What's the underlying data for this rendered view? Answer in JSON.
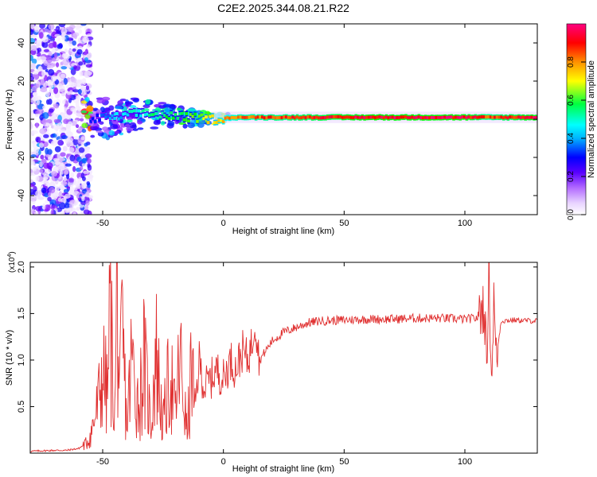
{
  "figure": {
    "title": "C2E2.2025.344.08.21.R22"
  },
  "chart_data": [
    {
      "type": "heatmap",
      "name": "spectrogram",
      "xlabel": "Height of straight line (km)",
      "ylabel": "Frequency (Hz)",
      "xlim": [
        -80,
        130
      ],
      "ylim": [
        -50,
        50
      ],
      "x_ticks": [
        -50,
        0,
        50,
        100
      ],
      "y_ticks": [
        -40,
        -20,
        0,
        20,
        40
      ],
      "colorbar": {
        "label": "Normalized spectral amplitude",
        "range": [
          0,
          1
        ],
        "ticks": [
          "0.0",
          "0.2",
          "0.4",
          "0.6",
          "0.8"
        ],
        "tick_values": [
          0.0,
          0.2,
          0.4,
          0.6,
          0.8
        ],
        "colormap": [
          "#ffffff",
          "#e8d4ff",
          "#7a00ff",
          "#0000ff",
          "#00ffff",
          "#00ff00",
          "#ffff00",
          "#ff8000",
          "#ff0000",
          "#ff0080"
        ]
      },
      "signal_trace": [
        {
          "x": -55,
          "f": 0,
          "amp": 0.35
        },
        {
          "x": -45,
          "f": 1,
          "amp": 0.45
        },
        {
          "x": -35,
          "f": 3,
          "amp": 0.5
        },
        {
          "x": -25,
          "f": 2,
          "amp": 0.55
        },
        {
          "x": -15,
          "f": 1,
          "amp": 0.6
        },
        {
          "x": -5,
          "f": 0,
          "amp": 0.75
        },
        {
          "x": 5,
          "f": 1,
          "amp": 0.85
        },
        {
          "x": 20,
          "f": 1,
          "amp": 0.9
        },
        {
          "x": 40,
          "f": 1,
          "amp": 0.95
        },
        {
          "x": 60,
          "f": 1,
          "amp": 1.0
        },
        {
          "x": 80,
          "f": 1,
          "amp": 1.0
        },
        {
          "x": 100,
          "f": 1,
          "amp": 1.0
        },
        {
          "x": 110,
          "f": 1,
          "amp": 0.9
        },
        {
          "x": 130,
          "f": 1,
          "amp": 1.0
        }
      ]
    },
    {
      "type": "line",
      "name": "snr",
      "xlabel": "Height of straight line (km)",
      "ylabel": "SNR (10 * v/v)",
      "scale_label": "(x10",
      "scale_exp": "4",
      "scale_close": ")",
      "xlim": [
        -80,
        130
      ],
      "ylim": [
        0,
        2.05
      ],
      "x_ticks": [
        -50,
        0,
        50,
        100
      ],
      "y_ticks": [
        "0.5",
        "1.0",
        "1.5",
        "2.0"
      ],
      "y_tick_values": [
        0.5,
        1.0,
        1.5,
        2.0
      ],
      "color": "#e03030",
      "series": [
        {
          "name": "SNR",
          "x": [
            -80,
            -70,
            -65,
            -60,
            -57,
            -55,
            -52,
            -50,
            -48,
            -47,
            -45,
            -44,
            -43,
            -42,
            -40,
            -38,
            -35,
            -33,
            -30,
            -28,
            -25,
            -22,
            -20,
            -18,
            -15,
            -13,
            -12,
            -10,
            -8,
            -5,
            -3,
            0,
            3,
            5,
            8,
            10,
            12,
            13,
            15,
            20,
            25,
            30,
            35,
            40,
            50,
            60,
            70,
            80,
            90,
            100,
            105,
            108,
            109,
            110,
            111,
            112,
            113,
            115,
            120,
            130
          ],
          "y": [
            0.02,
            0.03,
            0.03,
            0.05,
            0.1,
            0.2,
            0.5,
            0.9,
            0.6,
            1.5,
            0.4,
            1.8,
            0.5,
            1.3,
            0.3,
            1.0,
            0.5,
            1.0,
            0.3,
            1.1,
            0.3,
            0.9,
            0.4,
            1.0,
            0.2,
            1.0,
            0.4,
            1.0,
            0.7,
            0.8,
            0.9,
            0.8,
            1.0,
            0.9,
            1.1,
            1.0,
            1.2,
            1.45,
            1.0,
            1.2,
            1.3,
            1.35,
            1.4,
            1.42,
            1.43,
            1.44,
            1.44,
            1.45,
            1.45,
            1.44,
            1.45,
            1.6,
            0.95,
            2.05,
            0.75,
            1.65,
            1.0,
            1.42,
            1.43,
            1.42
          ]
        }
      ]
    }
  ]
}
